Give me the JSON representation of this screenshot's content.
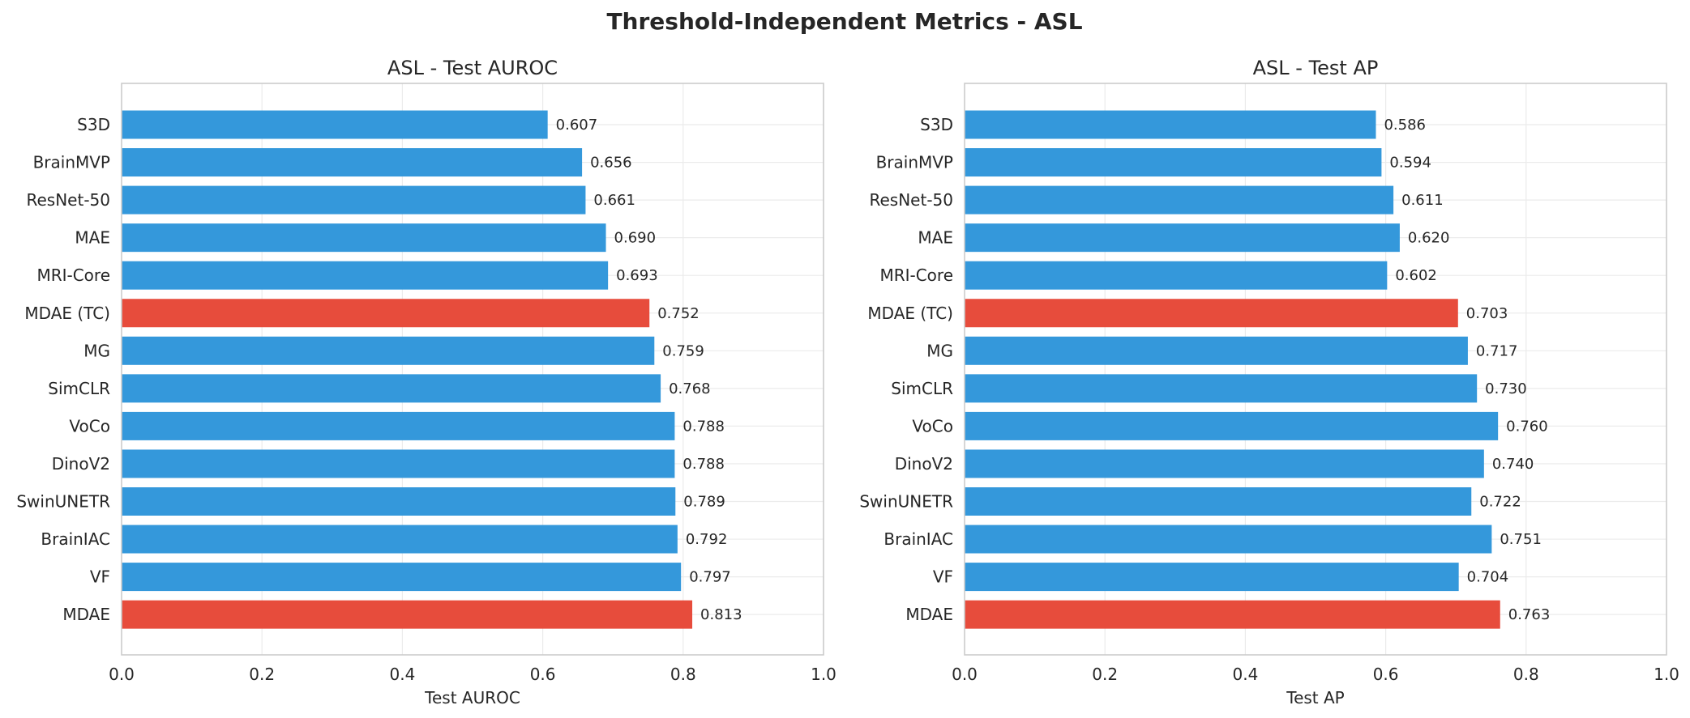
{
  "figure": {
    "suptitle": "Threshold-Independent Metrics - ASL"
  },
  "colors": {
    "bar_default": "#3498db",
    "bar_highlight": "#e74c3c",
    "grid": "#ebebeb",
    "frame": "#cccccc",
    "text": "#262626"
  },
  "chart_data": [
    {
      "type": "bar",
      "orientation": "horizontal",
      "title": "ASL - Test AUROC",
      "xlabel": "Test AUROC",
      "ylabel": "",
      "xlim": [
        0.0,
        1.0
      ],
      "xticks": [
        "0.0",
        "0.2",
        "0.4",
        "0.6",
        "0.8",
        "1.0"
      ],
      "grid": true,
      "categories": [
        "S3D",
        "BrainMVP",
        "ResNet-50",
        "MAE",
        "MRI-Core",
        "MDAE (TC)",
        "MG",
        "SimCLR",
        "VoCo",
        "DinoV2",
        "SwinUNETR",
        "BrainIAC",
        "VF",
        "MDAE"
      ],
      "values": [
        0.607,
        0.656,
        0.661,
        0.69,
        0.693,
        0.752,
        0.759,
        0.768,
        0.788,
        0.788,
        0.789,
        0.792,
        0.797,
        0.813
      ],
      "value_labels": [
        "0.607",
        "0.656",
        "0.661",
        "0.690",
        "0.693",
        "0.752",
        "0.759",
        "0.768",
        "0.788",
        "0.788",
        "0.789",
        "0.792",
        "0.797",
        "0.813"
      ],
      "highlighted": [
        "MDAE (TC)",
        "MDAE"
      ]
    },
    {
      "type": "bar",
      "orientation": "horizontal",
      "title": "ASL - Test AP",
      "xlabel": "Test AP",
      "ylabel": "",
      "xlim": [
        0.0,
        1.0
      ],
      "xticks": [
        "0.0",
        "0.2",
        "0.4",
        "0.6",
        "0.8",
        "1.0"
      ],
      "grid": true,
      "categories": [
        "S3D",
        "BrainMVP",
        "ResNet-50",
        "MAE",
        "MRI-Core",
        "MDAE (TC)",
        "MG",
        "SimCLR",
        "VoCo",
        "DinoV2",
        "SwinUNETR",
        "BrainIAC",
        "VF",
        "MDAE"
      ],
      "values": [
        0.586,
        0.594,
        0.611,
        0.62,
        0.602,
        0.703,
        0.717,
        0.73,
        0.76,
        0.74,
        0.722,
        0.751,
        0.704,
        0.763
      ],
      "value_labels": [
        "0.586",
        "0.594",
        "0.611",
        "0.620",
        "0.602",
        "0.703",
        "0.717",
        "0.730",
        "0.760",
        "0.740",
        "0.722",
        "0.751",
        "0.704",
        "0.763"
      ],
      "highlighted": [
        "MDAE (TC)",
        "MDAE"
      ]
    }
  ]
}
